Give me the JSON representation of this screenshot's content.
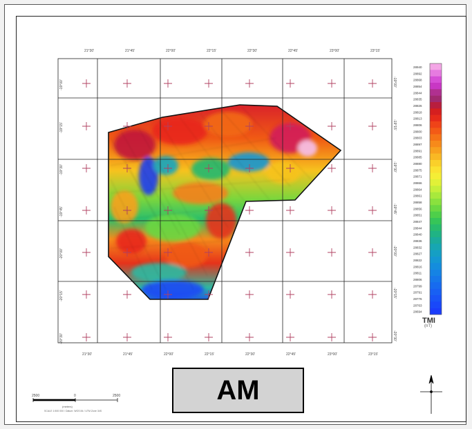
{
  "map": {
    "x_labels_top": [
      "21°30'",
      "21°45'",
      "22°00'",
      "22°15'",
      "22°30'",
      "22°45'",
      "23°00'",
      "23°15'"
    ],
    "x_labels_bottom": [
      "21°30'",
      "21°45'",
      "22°00'",
      "22°15'",
      "22°30'",
      "22°45'",
      "23°00'",
      "23°15'"
    ],
    "y_labels_left": [
      "-19°00'",
      "-19°15'",
      "-19°30'",
      "-19°45'",
      "-20°00'",
      "-20°15'",
      "-20°30'"
    ],
    "y_labels_right": [
      "-19°00'",
      "-19°15'",
      "-19°30'",
      "-19°45'",
      "-20°00'",
      "-20°15'",
      "-20°30'"
    ],
    "colorbar_title": "TMI",
    "colorbar_unit": "(nT)",
    "colorbar_values": [
      "28940",
      "28892",
      "28868",
      "28854",
      "28844",
      "28835",
      "28826",
      "28818",
      "28813",
      "28806",
      "28800",
      "28803",
      "28897",
      "28891",
      "28885",
      "28880",
      "28875",
      "28871",
      "28866",
      "28864",
      "28861",
      "28858",
      "28856",
      "28851",
      "28847",
      "28844",
      "28840",
      "28836",
      "28832",
      "28827",
      "28822",
      "28816",
      "28811",
      "28806",
      "28799",
      "28791",
      "28776",
      "28763",
      "28694"
    ],
    "colorbar_colors": [
      "#f4a6e6",
      "#e67be0",
      "#d64fd6",
      "#c837c4",
      "#b03090",
      "#a02a70",
      "#b81e3e",
      "#d51f1f",
      "#e62b1a",
      "#ef4318",
      "#f35a16",
      "#f57317",
      "#f78a1a",
      "#f8a11e",
      "#f9b824",
      "#fad02a",
      "#fbe231",
      "#f5ee35",
      "#e1f138",
      "#c6ef3a",
      "#a8e93c",
      "#8ae13e",
      "#6bd842",
      "#4ecf4a",
      "#36c558",
      "#28bb6c",
      "#20b384",
      "#1bab9c",
      "#17a6b2",
      "#159fc4",
      "#1497d3",
      "#148ddd",
      "#1583e4",
      "#1677ea",
      "#176bef",
      "#1860f3",
      "#1954f6",
      "#1948f9",
      "#1a3cfb"
    ],
    "scale_label": "(meters)",
    "scale_left": "2500",
    "scale_mid": "0",
    "scale_right": "2500",
    "scale_note": "SCALE 1:500 000 / Datum: WGS 84 / UTM Zone 34S"
  },
  "label_box": {
    "text": "AM"
  }
}
